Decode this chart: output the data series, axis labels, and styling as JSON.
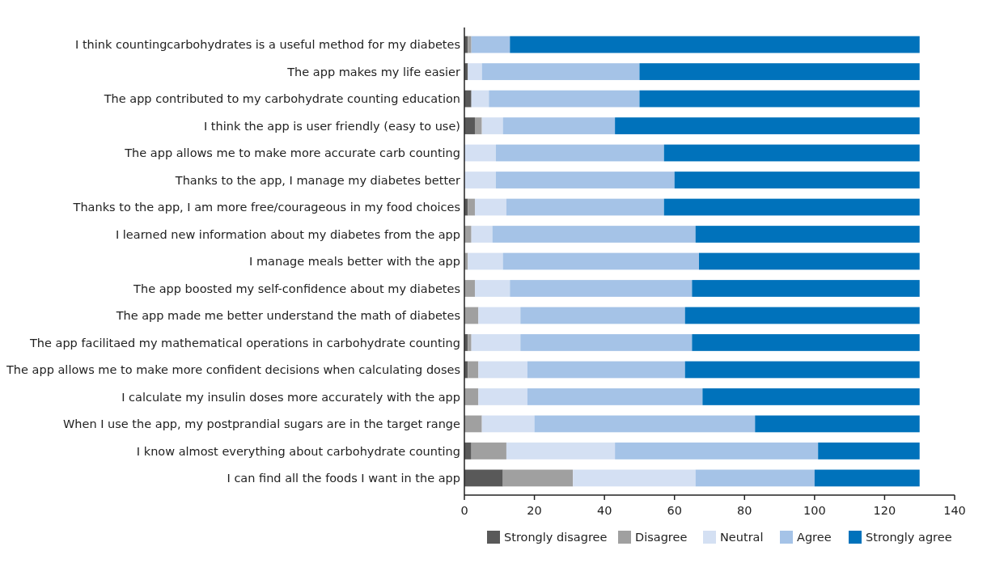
{
  "chart_data": {
    "type": "bar",
    "orientation": "horizontal",
    "stacked": true,
    "legend": "bottom",
    "grid": false,
    "categories": [
      "I think countingcarbohydrates is a useful method for my diabetes",
      "The app makes my life easier",
      "The app contributed to my carbohydrate counting education",
      "I think the app is user friendly (easy to use)",
      "The app allows me to make more accurate carb counting",
      "Thanks to the app, I manage my diabetes better",
      "Thanks to the app, I am more free/courageous in my food choices",
      "I learned new information about my diabetes from the app",
      "I manage meals better with the app",
      "The app boosted my self-confidence about my diabetes",
      "The app made me better understand the math of diabetes",
      "The app facilitaed my mathematical operations in carbohydrate counting",
      "The app allows me to make more confident decisions when calculating doses",
      "I calculate my insulin doses more accurately with the app",
      "When I use the app, my postprandial sugars are in the target range",
      "I know almost everything about carbohydrate counting",
      "I can find all the foods I want in the app"
    ],
    "series": [
      {
        "name": "Strongly disagree",
        "color": "#595959",
        "values": [
          1,
          1,
          2,
          3,
          0,
          0,
          1,
          0,
          0,
          0,
          0,
          1,
          1,
          0,
          0,
          2,
          11
        ]
      },
      {
        "name": "Disagree",
        "color": "#a0a0a0",
        "values": [
          1,
          0,
          0,
          2,
          0,
          0,
          2,
          2,
          1,
          3,
          4,
          1,
          3,
          4,
          5,
          10,
          20
        ]
      },
      {
        "name": "Neutral",
        "color": "#d4e0f3",
        "values": [
          0,
          4,
          5,
          6,
          9,
          9,
          9,
          6,
          10,
          10,
          12,
          14,
          14,
          14,
          15,
          31,
          35
        ]
      },
      {
        "name": "Agree",
        "color": "#a5c3e7",
        "values": [
          11,
          45,
          43,
          32,
          48,
          51,
          45,
          58,
          56,
          52,
          47,
          49,
          45,
          50,
          63,
          58,
          34
        ]
      },
      {
        "name": "Strongly agree",
        "color": "#0072bb",
        "values": [
          117,
          80,
          80,
          87,
          73,
          70,
          73,
          64,
          63,
          65,
          67,
          65,
          67,
          62,
          47,
          29,
          30
        ]
      }
    ],
    "xlim": [
      0,
      140
    ],
    "xticks": [
      0,
      20,
      40,
      60,
      80,
      100,
      120,
      140
    ]
  }
}
